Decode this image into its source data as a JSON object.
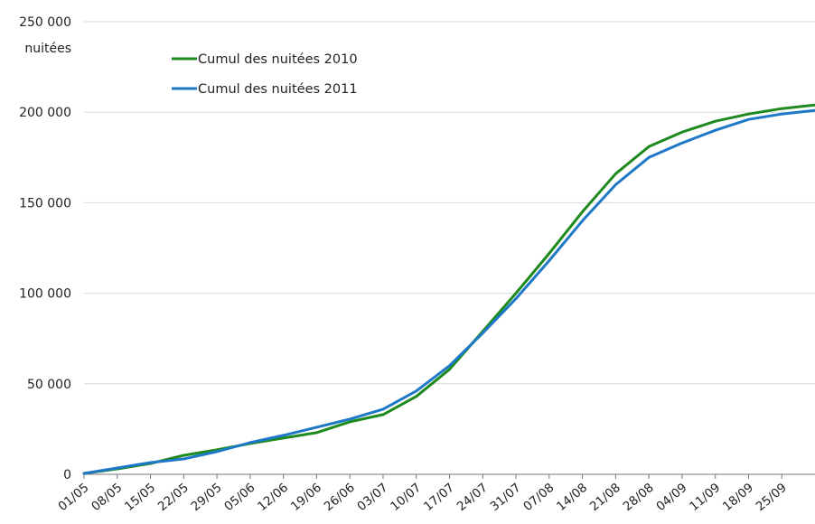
{
  "chart_data": {
    "type": "line",
    "y_unit_label": "nuitées",
    "ylim": [
      0,
      250000
    ],
    "y_ticks": [
      0,
      50000,
      100000,
      150000,
      200000,
      250000
    ],
    "y_tick_labels": [
      "0",
      "50 000",
      "100 000",
      "150 000",
      "200 000",
      "250 000"
    ],
    "grid": "horizontal",
    "legend_position": "top-left",
    "x_tick_labels": [
      "01/05",
      "08/05",
      "15/05",
      "22/05",
      "29/05",
      "05/06",
      "12/06",
      "19/06",
      "26/06",
      "03/07",
      "10/07",
      "17/07",
      "24/07",
      "31/07",
      "07/08",
      "14/08",
      "21/08",
      "28/08",
      "04/09",
      "11/09",
      "18/09",
      "25/09"
    ],
    "x": [
      "01/05",
      "08/05",
      "15/05",
      "22/05",
      "29/05",
      "05/06",
      "12/06",
      "19/06",
      "26/06",
      "03/07",
      "10/07",
      "17/07",
      "24/07",
      "31/07",
      "07/08",
      "14/08",
      "21/08",
      "28/08",
      "04/09",
      "11/09",
      "18/09",
      "25/09",
      "30/09"
    ],
    "series": [
      {
        "name": "Cumul des nuitées 2010",
        "color": "#1e8a1e",
        "values": [
          500,
          3000,
          6000,
          10500,
          13500,
          17000,
          20000,
          23000,
          29000,
          33000,
          43000,
          58000,
          79000,
          100000,
          122000,
          145000,
          166000,
          181000,
          189000,
          195000,
          199000,
          202000,
          204000
        ]
      },
      {
        "name": "Cumul des nuitées 2011",
        "color": "#1e78c8",
        "values": [
          500,
          3500,
          6500,
          8500,
          12500,
          17500,
          21500,
          26000,
          30500,
          36000,
          46000,
          60000,
          78000,
          97000,
          118000,
          140000,
          160000,
          175000,
          183000,
          190000,
          196000,
          199000,
          201000
        ]
      }
    ]
  }
}
